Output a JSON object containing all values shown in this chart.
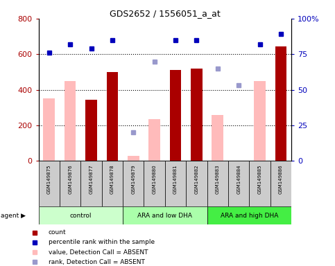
{
  "title": "GDS2652 / 1556051_a_at",
  "samples": [
    "GSM149875",
    "GSM149876",
    "GSM149877",
    "GSM149878",
    "GSM149879",
    "GSM149880",
    "GSM149881",
    "GSM149882",
    "GSM149883",
    "GSM149884",
    "GSM149885",
    "GSM149886"
  ],
  "groups": [
    {
      "label": "control",
      "color": "#ccffcc",
      "start": 0,
      "end": 4
    },
    {
      "label": "ARA and low DHA",
      "color": "#aaffaa",
      "start": 4,
      "end": 8
    },
    {
      "label": "ARA and high DHA",
      "color": "#44ee44",
      "start": 8,
      "end": 12
    }
  ],
  "bar_values": [
    null,
    null,
    345,
    500,
    null,
    null,
    510,
    520,
    null,
    null,
    null,
    645
  ],
  "bar_absent": [
    350,
    450,
    null,
    null,
    30,
    235,
    null,
    null,
    260,
    null,
    450,
    null
  ],
  "dot_blue_pct": [
    76,
    82,
    79,
    85,
    null,
    null,
    85,
    85,
    null,
    null,
    82,
    89
  ],
  "dot_absent_pct": [
    null,
    null,
    null,
    null,
    20,
    70,
    null,
    null,
    65,
    53,
    null,
    null
  ],
  "ylim_left": [
    0,
    800
  ],
  "ylim_right": [
    0,
    100
  ],
  "left_yticks": [
    0,
    200,
    400,
    600,
    800
  ],
  "right_yticks": [
    0,
    25,
    50,
    75,
    100
  ],
  "right_ytick_labels": [
    "0",
    "25",
    "50",
    "75",
    "100%"
  ],
  "bar_color": "#aa0000",
  "bar_absent_color": "#ffbbbb",
  "dot_blue_color": "#0000bb",
  "dot_absent_color": "#9999cc",
  "bg_color": "#ffffff",
  "tick_area_color": "#cccccc",
  "legend": [
    {
      "color": "#aa0000",
      "marker": "s",
      "label": "count"
    },
    {
      "color": "#0000bb",
      "marker": "s",
      "label": "percentile rank within the sample"
    },
    {
      "color": "#ffbbbb",
      "marker": "s",
      "label": "value, Detection Call = ABSENT"
    },
    {
      "color": "#9999cc",
      "marker": "s",
      "label": "rank, Detection Call = ABSENT"
    }
  ]
}
